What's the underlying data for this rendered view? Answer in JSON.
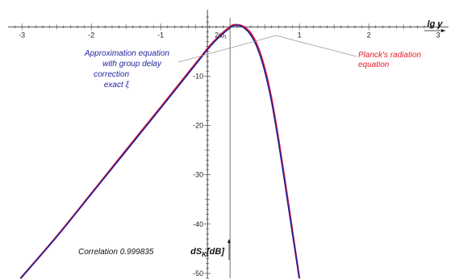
{
  "chart_data": {
    "type": "line",
    "title": "",
    "xlabel": "lg y",
    "ylabel": "dS_K[dB]",
    "ylabel_parts": {
      "prefix": "d",
      "main": "S",
      "sub": "K",
      "suffix": "[dB]"
    },
    "xlim": [
      -3.2,
      3.15
    ],
    "ylim": [
      -51,
      2.5
    ],
    "x_ticks": [
      "-3",
      "-2",
      "-1",
      "1",
      "2",
      "3"
    ],
    "y_ticks": [
      "-10",
      "-20",
      "-30",
      "-40",
      "-50"
    ],
    "x_tick_values": [
      -3,
      -2,
      -1,
      1,
      2,
      3
    ],
    "y_tick_values": [
      -10,
      -20,
      -30,
      -40,
      -50
    ],
    "marker_label": "2ω₁",
    "marker_x": 0,
    "grid": false,
    "legend": "none",
    "series": [
      {
        "name": "Planck's radiation equation",
        "color": "#e8182a",
        "x": [
          -3.02,
          -2.5,
          -2.0,
          -1.5,
          -1.0,
          -0.5,
          -0.25,
          0.0,
          0.1,
          0.2,
          0.3,
          0.4,
          0.5,
          0.6,
          0.7,
          0.8,
          0.9,
          1.0
        ],
        "y": [
          -51.0,
          -42.5,
          -33.8,
          -25.0,
          -16.3,
          -7.5,
          -3.2,
          0.0,
          0.4,
          0.0,
          -1.3,
          -4.0,
          -8.4,
          -14.7,
          -22.9,
          -32.0,
          -41.5,
          -51.0
        ]
      },
      {
        "name": "Approximation equation with group delay correction exact ξ",
        "color": "#1f1f9e",
        "x": [
          -3.02,
          -2.5,
          -2.0,
          -1.5,
          -1.0,
          -0.5,
          -0.25,
          0.0,
          0.1,
          0.2,
          0.3,
          0.4,
          0.5,
          0.6,
          0.7,
          0.8,
          0.9,
          1.0
        ],
        "y": [
          -51.0,
          -42.6,
          -33.9,
          -25.2,
          -16.5,
          -7.7,
          -3.4,
          -0.2,
          0.3,
          -0.2,
          -1.7,
          -4.5,
          -9.0,
          -15.3,
          -23.5,
          -32.6,
          -42.0,
          -51.0
        ]
      }
    ]
  },
  "annotations": {
    "approx_lines": [
      "Approximation equation",
      "with group delay",
      "correction",
      "exact ξ"
    ],
    "planck_lines": [
      "Planck's radiation",
      "equation"
    ],
    "correlation": "Correlation 0.999835"
  }
}
